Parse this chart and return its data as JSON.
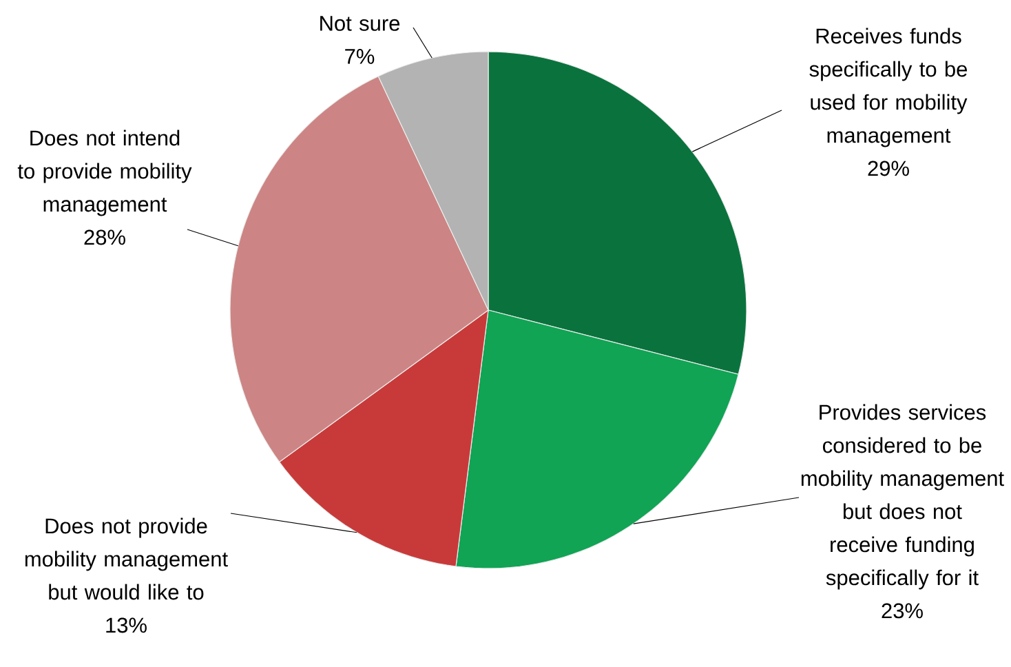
{
  "chart_data": {
    "type": "pie",
    "categories": [
      "Receives funds specifically to be used for mobility management",
      "Provides services considered to be mobility management but does not receive funding specifically for it",
      "Does not provide mobility management but would like to",
      "Does not intend to provide mobility management",
      "Not sure"
    ],
    "values": [
      29,
      23,
      13,
      28,
      7
    ],
    "value_labels": [
      "29%",
      "23%",
      "13%",
      "28%",
      "7%"
    ],
    "colors": [
      "#0a733d",
      "#10a454",
      "#c83a3a",
      "#cc8584",
      "#b3b3b3"
    ],
    "legend": false
  }
}
